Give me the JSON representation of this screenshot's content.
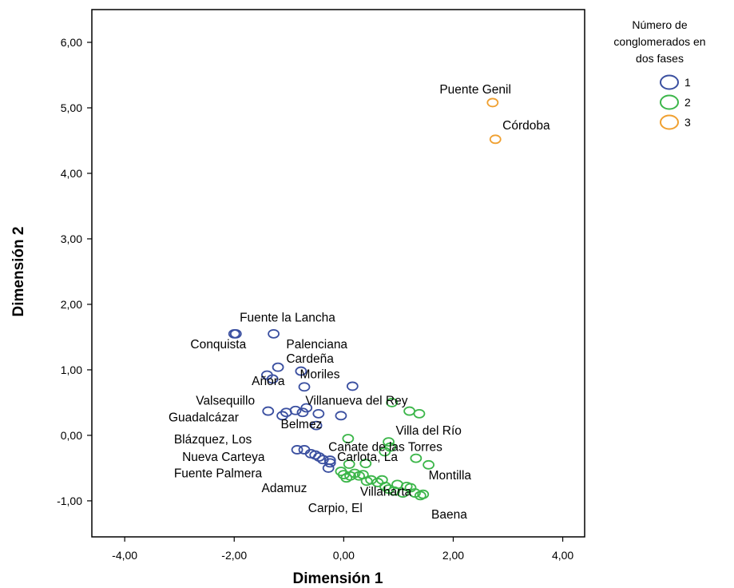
{
  "chart_data": {
    "type": "scatter",
    "xlabel": "Dimensión 1",
    "ylabel": "Dimensión 2",
    "xlim": [
      -4.6,
      4.4
    ],
    "ylim": [
      -1.55,
      6.5
    ],
    "xticks": [
      -4,
      -2,
      0,
      2,
      4
    ],
    "yticks": [
      -1,
      0,
      1,
      2,
      3,
      4,
      5,
      6
    ],
    "xtick_labels": [
      "-4,00",
      "-2,00",
      "0,00",
      "2,00",
      "4,00"
    ],
    "ytick_labels": [
      "-1,00",
      "0,00",
      "1,00",
      "2,00",
      "3,00",
      "4,00",
      "5,00",
      "6,00"
    ],
    "grid": false,
    "legend": {
      "title": "Número de conglomerados en dos fases",
      "title_lines": [
        "Número de",
        "conglomerados en",
        "dos fases"
      ],
      "placement": "right",
      "items": [
        {
          "label": "1",
          "color": "#3a4fa0"
        },
        {
          "label": "2",
          "color": "#3cb64a"
        },
        {
          "label": "3",
          "color": "#f0a030"
        }
      ]
    },
    "series": [
      {
        "name": "1",
        "color": "#3a4fa0",
        "points": [
          [
            -2.0,
            1.55
          ],
          [
            -1.97,
            1.55
          ],
          [
            -1.28,
            1.55
          ],
          [
            -1.2,
            1.04
          ],
          [
            -1.4,
            0.92
          ],
          [
            -1.3,
            0.86
          ],
          [
            -0.78,
            0.98
          ],
          [
            -0.72,
            0.74
          ],
          [
            0.16,
            0.75
          ],
          [
            -0.68,
            0.42
          ],
          [
            -0.88,
            0.38
          ],
          [
            -1.05,
            0.35
          ],
          [
            -1.12,
            0.3
          ],
          [
            -1.38,
            0.37
          ],
          [
            -0.46,
            0.33
          ],
          [
            -0.05,
            0.3
          ],
          [
            -0.75,
            0.35
          ],
          [
            -0.5,
            0.15
          ],
          [
            -0.85,
            -0.22
          ],
          [
            -0.72,
            -0.22
          ],
          [
            -0.6,
            -0.28
          ],
          [
            -0.52,
            -0.3
          ],
          [
            -0.45,
            -0.33
          ],
          [
            -0.38,
            -0.37
          ],
          [
            -0.25,
            -0.38
          ],
          [
            -0.25,
            -0.42
          ],
          [
            -0.28,
            -0.5
          ]
        ]
      },
      {
        "name": "2",
        "color": "#3cb64a",
        "points": [
          [
            0.88,
            0.5
          ],
          [
            1.2,
            0.37
          ],
          [
            1.38,
            0.33
          ],
          [
            0.08,
            -0.05
          ],
          [
            0.82,
            -0.1
          ],
          [
            0.85,
            -0.18
          ],
          [
            0.75,
            -0.25
          ],
          [
            1.32,
            -0.35
          ],
          [
            1.55,
            -0.45
          ],
          [
            0.4,
            -0.43
          ],
          [
            0.1,
            -0.44
          ],
          [
            -0.05,
            -0.55
          ],
          [
            0.0,
            -0.6
          ],
          [
            0.05,
            -0.65
          ],
          [
            0.12,
            -0.62
          ],
          [
            0.2,
            -0.58
          ],
          [
            0.28,
            -0.62
          ],
          [
            0.35,
            -0.6
          ],
          [
            0.42,
            -0.7
          ],
          [
            0.5,
            -0.68
          ],
          [
            0.62,
            -0.72
          ],
          [
            0.7,
            -0.68
          ],
          [
            0.76,
            -0.78
          ],
          [
            0.82,
            -0.82
          ],
          [
            0.92,
            -0.85
          ],
          [
            0.98,
            -0.75
          ],
          [
            1.08,
            -0.88
          ],
          [
            1.15,
            -0.78
          ],
          [
            1.22,
            -0.8
          ],
          [
            1.3,
            -0.88
          ],
          [
            1.4,
            -0.92
          ],
          [
            1.45,
            -0.9
          ]
        ]
      },
      {
        "name": "3",
        "color": "#f0a030",
        "points": [
          [
            2.72,
            5.08
          ],
          [
            2.77,
            4.52
          ]
        ]
      }
    ],
    "annotations": [
      {
        "text": "Puente Genil",
        "x": 1.75,
        "y": 5.22
      },
      {
        "text": "Córdoba",
        "x": 2.9,
        "y": 4.67
      },
      {
        "text": "Fuente la Lancha",
        "x": -1.9,
        "y": 1.74
      },
      {
        "text": "Conquista",
        "x": -2.8,
        "y": 1.33
      },
      {
        "text": "Palenciana",
        "x": -1.05,
        "y": 1.33
      },
      {
        "text": "Cardeña",
        "x": -1.05,
        "y": 1.11
      },
      {
        "text": "Moriles",
        "x": -0.8,
        "y": 0.87
      },
      {
        "text": "Añora",
        "x": -1.68,
        "y": 0.77
      },
      {
        "text": "Valsequillo",
        "x": -2.7,
        "y": 0.47
      },
      {
        "text": "Villanueva del Rey",
        "x": -0.7,
        "y": 0.47
      },
      {
        "text": "Guadalcázar",
        "x": -3.2,
        "y": 0.21
      },
      {
        "text": "Belmez",
        "x": -1.15,
        "y": 0.11
      },
      {
        "text": "Villa del Río",
        "x": 0.95,
        "y": 0.01
      },
      {
        "text": "Blázquez, Los",
        "x": -3.1,
        "y": -0.12
      },
      {
        "text": "Cañate de las Torres",
        "x": -0.28,
        "y": -0.24
      },
      {
        "text": "Nueva Carteya",
        "x": -2.95,
        "y": -0.39
      },
      {
        "text": "Carlota, La",
        "x": -0.12,
        "y": -0.39
      },
      {
        "text": "Fuente Palmera",
        "x": -3.1,
        "y": -0.64
      },
      {
        "text": "Montilla",
        "x": 1.55,
        "y": -0.67
      },
      {
        "text": "Adamuz",
        "x": -1.5,
        "y": -0.87
      },
      {
        "text": "Villaharta",
        "x": 0.3,
        "y": -0.92
      },
      {
        "text": "Carpio, El",
        "x": -0.65,
        "y": -1.17
      },
      {
        "text": "Baena",
        "x": 1.6,
        "y": -1.27
      }
    ]
  }
}
